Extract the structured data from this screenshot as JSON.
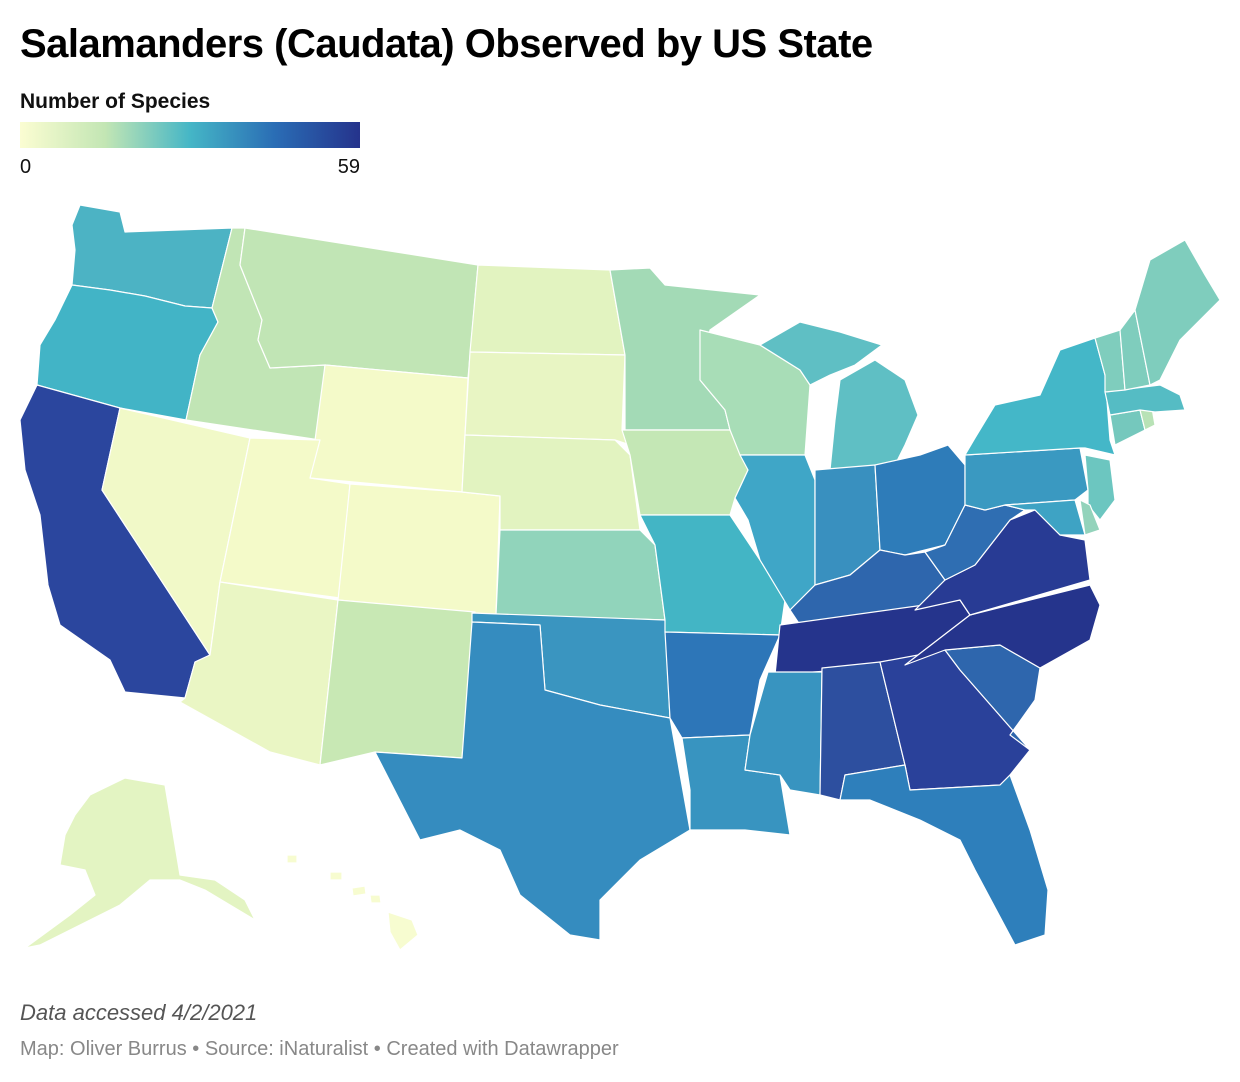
{
  "title": "Salamanders (Caudata) Observed by US State",
  "legend": {
    "title": "Number of Species",
    "min": "0",
    "max": "59"
  },
  "colors": {
    "scale": [
      "#fbfdd2",
      "#c3e6b4",
      "#45b6c6",
      "#2a6db5",
      "#25338c"
    ],
    "border": "#ffffff"
  },
  "footer": {
    "note": "Data accessed 4/2/2021",
    "credits": "Map: Oliver Burrus • Source: iNaturalist • Created with Datawrapper"
  },
  "states": [
    {
      "code": "WA",
      "color": "#4cb3c4"
    },
    {
      "code": "OR",
      "color": "#42b4c6"
    },
    {
      "code": "CA",
      "color": "#2b469e"
    },
    {
      "code": "ID",
      "color": "#c1e5b5"
    },
    {
      "code": "MT",
      "color": "#c1e5b5"
    },
    {
      "code": "WY",
      "color": "#f4fac9"
    },
    {
      "code": "NV",
      "color": "#f1f9c8"
    },
    {
      "code": "UT",
      "color": "#f4fac9"
    },
    {
      "code": "CO",
      "color": "#f4fac9"
    },
    {
      "code": "AZ",
      "color": "#eaf6c4"
    },
    {
      "code": "NM",
      "color": "#c8e8b4"
    },
    {
      "code": "ND",
      "color": "#e2f3c0"
    },
    {
      "code": "SD",
      "color": "#e8f5c3"
    },
    {
      "code": "NE",
      "color": "#e2f3c0"
    },
    {
      "code": "KS",
      "color": "#91d4bb"
    },
    {
      "code": "OK",
      "color": "#3a95c0"
    },
    {
      "code": "TX",
      "color": "#358cbf"
    },
    {
      "code": "MN",
      "color": "#a3dab6"
    },
    {
      "code": "IA",
      "color": "#c4e7b5"
    },
    {
      "code": "MO",
      "color": "#43b5c5"
    },
    {
      "code": "AR",
      "color": "#2d76b8"
    },
    {
      "code": "LA",
      "color": "#3894c0"
    },
    {
      "code": "WI",
      "color": "#a8ddb7"
    },
    {
      "code": "IL",
      "color": "#3fa6c7"
    },
    {
      "code": "MI",
      "color": "#5fbfc4"
    },
    {
      "code": "IN",
      "color": "#3990bf"
    },
    {
      "code": "OH",
      "color": "#2e7cb9"
    },
    {
      "code": "KY",
      "color": "#2e66ad"
    },
    {
      "code": "TN",
      "color": "#25348c"
    },
    {
      "code": "MS",
      "color": "#3894c0"
    },
    {
      "code": "AL",
      "color": "#2d4f9f"
    },
    {
      "code": "GA",
      "color": "#2a419a"
    },
    {
      "code": "FL",
      "color": "#2e7fbb"
    },
    {
      "code": "SC",
      "color": "#2e66ad"
    },
    {
      "code": "NC",
      "color": "#25348c"
    },
    {
      "code": "VA",
      "color": "#283b94"
    },
    {
      "code": "WV",
      "color": "#2f6eb2"
    },
    {
      "code": "PA",
      "color": "#3a99c1"
    },
    {
      "code": "NY",
      "color": "#44b7c8"
    },
    {
      "code": "NJ",
      "color": "#6cc6c0"
    },
    {
      "code": "DE",
      "color": "#93d3bb"
    },
    {
      "code": "MD",
      "color": "#3ea3c4"
    },
    {
      "code": "CT",
      "color": "#75c8bd"
    },
    {
      "code": "RI",
      "color": "#b8e2b6"
    },
    {
      "code": "MA",
      "color": "#55bcc4"
    },
    {
      "code": "VT",
      "color": "#7fcdbd"
    },
    {
      "code": "NH",
      "color": "#7fcdbd"
    },
    {
      "code": "ME",
      "color": "#7fcdbd"
    },
    {
      "code": "AK",
      "color": "#e3f4c2"
    },
    {
      "code": "HI",
      "color": "#f7fcd0"
    }
  ]
}
